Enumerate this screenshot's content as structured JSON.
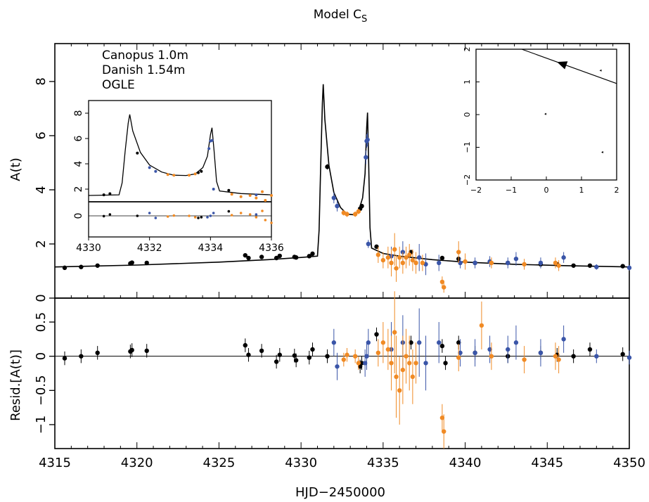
{
  "chart_data": {
    "type": "scatter",
    "title": "Model C",
    "title_subscript": "S",
    "xlabel": "HJD−2450000",
    "colors": {
      "Canopus 1.0m": "#3a55a8",
      "Danish 1.54m": "#f08a24",
      "OGLE": "#000000"
    },
    "legend": {
      "position": "top-left",
      "entries": [
        "Canopus 1.0m",
        "Danish 1.54m",
        "OGLE"
      ]
    },
    "top_panel": {
      "ylabel": "A(t)",
      "xlim": [
        4315,
        4350
      ],
      "ylim": [
        0,
        9.4
      ],
      "xticks": [
        "4315",
        "4320",
        "4325",
        "4330",
        "4335",
        "4340",
        "4345",
        "4350"
      ],
      "yticks": [
        "0",
        "2",
        "4",
        "6",
        "8"
      ],
      "model_curve": [
        [
          4315,
          1.15
        ],
        [
          4320,
          1.22
        ],
        [
          4325,
          1.33
        ],
        [
          4328,
          1.42
        ],
        [
          4330,
          1.5
        ],
        [
          4331.0,
          1.55
        ],
        [
          4331.1,
          2.5
        ],
        [
          4331.2,
          5.0
        ],
        [
          4331.3,
          7.2
        ],
        [
          4331.35,
          7.9
        ],
        [
          4331.45,
          6.6
        ],
        [
          4331.7,
          4.9
        ],
        [
          4332.0,
          3.9
        ],
        [
          4332.4,
          3.35
        ],
        [
          4332.8,
          3.1
        ],
        [
          4333.2,
          3.08
        ],
        [
          4333.5,
          3.2
        ],
        [
          4333.75,
          3.7
        ],
        [
          4333.9,
          4.6
        ],
        [
          4334.0,
          6.3
        ],
        [
          4334.05,
          6.85
        ],
        [
          4334.12,
          5.0
        ],
        [
          4334.2,
          2.6
        ],
        [
          4334.3,
          1.85
        ],
        [
          4335,
          1.65
        ],
        [
          4336,
          1.55
        ],
        [
          4338,
          1.42
        ],
        [
          4340,
          1.33
        ],
        [
          4343,
          1.25
        ],
        [
          4346,
          1.2
        ],
        [
          4350,
          1.15
        ]
      ],
      "series": [
        {
          "name": "OGLE",
          "points": [
            [
              4315.6,
              1.12,
              0.05
            ],
            [
              4316.6,
              1.15,
              0.05
            ],
            [
              4317.6,
              1.2,
              0.05
            ],
            [
              4319.6,
              1.28,
              0.06
            ],
            [
              4319.7,
              1.31,
              0.06
            ],
            [
              4320.6,
              1.3,
              0.06
            ],
            [
              4326.6,
              1.58,
              0.06
            ],
            [
              4326.8,
              1.48,
              0.06
            ],
            [
              4327.6,
              1.52,
              0.06
            ],
            [
              4328.5,
              1.48,
              0.06
            ],
            [
              4328.7,
              1.56,
              0.06
            ],
            [
              4329.6,
              1.52,
              0.06
            ],
            [
              4329.7,
              1.5,
              0.06
            ],
            [
              4330.5,
              1.55,
              0.06
            ],
            [
              4330.7,
              1.64,
              0.06
            ],
            [
              4331.6,
              4.85,
              0.1
            ],
            [
              4333.6,
              3.3,
              0.08
            ],
            [
              4333.7,
              3.4,
              0.08
            ],
            [
              4334.6,
              1.9,
              0.06
            ],
            [
              4336.7,
              1.7,
              0.06
            ],
            [
              4338.6,
              1.48,
              0.06
            ],
            [
              4339.6,
              1.45,
              0.06
            ],
            [
              4340.6,
              1.3,
              0.06
            ],
            [
              4342.6,
              1.3,
              0.06
            ],
            [
              4344.6,
              1.25,
              0.06
            ],
            [
              4345.6,
              1.25,
              0.06
            ],
            [
              4346.6,
              1.2,
              0.06
            ],
            [
              4347.6,
              1.2,
              0.06
            ],
            [
              4349.6,
              1.18,
              0.06
            ]
          ]
        },
        {
          "name": "Canopus 1.0m",
          "points": [
            [
              4332.0,
              3.7,
              0.2
            ],
            [
              4332.2,
              3.4,
              0.2
            ],
            [
              4334.0,
              5.8,
              0.25
            ],
            [
              4334.05,
              5.85,
              0.25
            ],
            [
              4333.95,
              5.2,
              0.25
            ],
            [
              4334.1,
              2.0,
              0.15
            ],
            [
              4335.5,
              1.55,
              0.35
            ],
            [
              4336.2,
              1.7,
              0.4
            ],
            [
              4337.2,
              1.5,
              0.5
            ],
            [
              4337.6,
              1.25,
              0.4
            ],
            [
              4338.4,
              1.3,
              0.3
            ],
            [
              4339.7,
              1.3,
              0.2
            ],
            [
              4340.6,
              1.3,
              0.2
            ],
            [
              4341.5,
              1.35,
              0.2
            ],
            [
              4342.6,
              1.3,
              0.2
            ],
            [
              4343.1,
              1.45,
              0.25
            ],
            [
              4344.6,
              1.3,
              0.2
            ],
            [
              4346.0,
              1.5,
              0.2
            ],
            [
              4348.0,
              1.15,
              0.1
            ],
            [
              4350.0,
              1.12,
              0.1
            ]
          ]
        },
        {
          "name": "Danish 1.54m",
          "points": [
            [
              4332.6,
              3.15,
              0.1
            ],
            [
              4332.8,
              3.1,
              0.1
            ],
            [
              4333.3,
              3.1,
              0.1
            ],
            [
              4333.5,
              3.2,
              0.1
            ],
            [
              4334.7,
              1.6,
              0.3
            ],
            [
              4335.0,
              1.4,
              0.3
            ],
            [
              4335.3,
              1.5,
              0.4
            ],
            [
              4335.5,
              1.3,
              0.5
            ],
            [
              4335.7,
              1.8,
              0.6
            ],
            [
              4335.8,
              1.1,
              0.5
            ],
            [
              4336.0,
              1.5,
              0.4
            ],
            [
              4336.2,
              1.3,
              0.4
            ],
            [
              4336.4,
              1.5,
              0.4
            ],
            [
              4336.6,
              1.6,
              0.4
            ],
            [
              4336.8,
              1.4,
              0.4
            ],
            [
              4337.0,
              1.3,
              0.4
            ],
            [
              4337.4,
              1.3,
              0.3
            ],
            [
              4338.6,
              0.6,
              0.2
            ],
            [
              4338.7,
              0.4,
              0.2
            ],
            [
              4339.6,
              1.7,
              0.4
            ],
            [
              4340.0,
              1.35,
              0.3
            ],
            [
              4341.6,
              1.3,
              0.2
            ],
            [
              4343.6,
              1.25,
              0.2
            ],
            [
              4345.5,
              1.3,
              0.2
            ],
            [
              4345.7,
              1.2,
              0.2
            ]
          ]
        }
      ]
    },
    "bottom_panel": {
      "ylabel": "Resid.[A(t)]",
      "xlim": [
        4315,
        4350
      ],
      "ylim": [
        -1.35,
        0.85
      ],
      "yticks": [
        "0.5",
        "0",
        "−0.5",
        "−1"
      ],
      "series": [
        {
          "name": "OGLE",
          "points": [
            [
              4315.6,
              -0.03,
              0.1
            ],
            [
              4316.6,
              0.0,
              0.1
            ],
            [
              4317.6,
              0.05,
              0.1
            ],
            [
              4319.6,
              0.07,
              0.1
            ],
            [
              4319.7,
              0.09,
              0.1
            ],
            [
              4320.6,
              0.08,
              0.1
            ],
            [
              4326.6,
              0.16,
              0.1
            ],
            [
              4326.8,
              0.02,
              0.1
            ],
            [
              4327.6,
              0.08,
              0.1
            ],
            [
              4328.5,
              -0.08,
              0.1
            ],
            [
              4328.7,
              0.02,
              0.1
            ],
            [
              4329.6,
              0.01,
              0.1
            ],
            [
              4329.7,
              -0.06,
              0.1
            ],
            [
              4330.5,
              -0.02,
              0.1
            ],
            [
              4330.7,
              0.1,
              0.1
            ],
            [
              4331.6,
              0.0,
              0.1
            ],
            [
              4333.6,
              -0.15,
              0.1
            ],
            [
              4333.7,
              -0.1,
              0.1
            ],
            [
              4334.6,
              0.32,
              0.1
            ],
            [
              4336.7,
              0.2,
              0.1
            ],
            [
              4338.6,
              0.15,
              0.1
            ],
            [
              4338.8,
              -0.1,
              0.1
            ],
            [
              4339.6,
              0.2,
              0.1
            ],
            [
              4340.6,
              0.05,
              0.1
            ],
            [
              4342.6,
              0.0,
              0.1
            ],
            [
              4344.6,
              0.05,
              0.1
            ],
            [
              4345.6,
              0.02,
              0.1
            ],
            [
              4346.6,
              0.0,
              0.1
            ],
            [
              4347.6,
              0.1,
              0.1
            ],
            [
              4349.6,
              0.03,
              0.1
            ]
          ]
        },
        {
          "name": "Canopus 1.0m",
          "points": [
            [
              4332.0,
              0.2,
              0.2
            ],
            [
              4332.2,
              -0.15,
              0.2
            ],
            [
              4333.9,
              -0.1,
              0.2
            ],
            [
              4334.0,
              0.0,
              0.2
            ],
            [
              4334.1,
              0.2,
              0.2
            ],
            [
              4335.5,
              0.1,
              0.4
            ],
            [
              4336.2,
              0.2,
              0.4
            ],
            [
              4337.2,
              0.2,
              0.5
            ],
            [
              4337.6,
              -0.1,
              0.4
            ],
            [
              4338.4,
              0.2,
              0.3
            ],
            [
              4339.7,
              0.05,
              0.2
            ],
            [
              4340.6,
              0.05,
              0.2
            ],
            [
              4341.5,
              0.1,
              0.2
            ],
            [
              4342.6,
              0.1,
              0.2
            ],
            [
              4343.1,
              0.2,
              0.25
            ],
            [
              4344.6,
              0.05,
              0.2
            ],
            [
              4346.0,
              0.25,
              0.2
            ],
            [
              4348.0,
              0.0,
              0.1
            ],
            [
              4350.0,
              -0.02,
              0.1
            ]
          ]
        },
        {
          "name": "Danish 1.54m",
          "points": [
            [
              4332.6,
              -0.05,
              0.1
            ],
            [
              4332.8,
              0.02,
              0.1
            ],
            [
              4333.3,
              0.0,
              0.1
            ],
            [
              4333.5,
              -0.1,
              0.1
            ],
            [
              4334.7,
              0.05,
              0.2
            ],
            [
              4335.0,
              0.2,
              0.3
            ],
            [
              4335.3,
              0.1,
              0.3
            ],
            [
              4335.5,
              -0.1,
              0.4
            ],
            [
              4335.7,
              0.35,
              0.6
            ],
            [
              4335.8,
              -0.3,
              0.6
            ],
            [
              4336.0,
              -0.5,
              0.5
            ],
            [
              4336.2,
              -0.2,
              0.5
            ],
            [
              4336.4,
              0.0,
              0.4
            ],
            [
              4336.6,
              -0.1,
              0.4
            ],
            [
              4336.8,
              -0.3,
              0.4
            ],
            [
              4337.0,
              -0.1,
              0.3
            ],
            [
              4338.6,
              -0.9,
              0.2
            ],
            [
              4338.7,
              -1.1,
              0.25
            ],
            [
              4339.6,
              -0.02,
              0.2
            ],
            [
              4341.0,
              0.45,
              0.35
            ],
            [
              4341.6,
              0.0,
              0.2
            ],
            [
              4343.6,
              -0.05,
              0.2
            ],
            [
              4345.5,
              0.0,
              0.2
            ],
            [
              4345.7,
              -0.05,
              0.2
            ]
          ]
        }
      ]
    },
    "inset_zoom": {
      "xlim": [
        4330,
        4336
      ],
      "ylim": [
        1,
        9
      ],
      "xticks": [
        "4330",
        "4332",
        "4334",
        "4336"
      ],
      "yticks": [
        "2",
        "4",
        "6",
        "8"
      ],
      "resid_ytick": "0"
    },
    "inset_caustic": {
      "xlim": [
        -2,
        2
      ],
      "ylim": [
        -2,
        2
      ],
      "xticks": [
        "−2",
        "−1",
        "0",
        "1",
        "2"
      ],
      "yticks": [
        "−2",
        "−1",
        "0",
        "1",
        "2"
      ],
      "trajectory": [
        [
          -0.7,
          2.0
        ],
        [
          2.0,
          0.95
        ]
      ],
      "caustics": [
        [
          -0.02,
          0.02
        ],
        [
          1.6,
          -1.15
        ],
        [
          1.55,
          1.35
        ]
      ]
    }
  }
}
